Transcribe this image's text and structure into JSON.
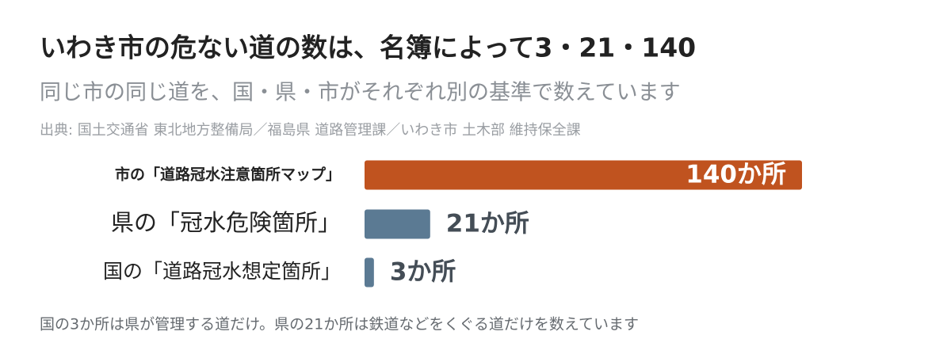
{
  "chart_data": {
    "type": "bar",
    "orientation": "horizontal",
    "title": "いわき市の危ない道の数は、名簿によって3・21・140",
    "subtitle": "同じ市の同じ道を、国・県・市がそれぞれ別の基準で数えています",
    "source": "出典: 国土交通省 東北地方整備局／福島県 道路管理課／いわき市 土木部 維持保全課",
    "categories": [
      "市の「道路冠水注意箇所マップ」",
      "県の「冠水危険箇所」",
      "国の「道路冠水想定箇所」"
    ],
    "values": [
      140,
      21,
      3
    ],
    "value_labels": [
      "140か所",
      "21か所",
      "3か所"
    ],
    "colors": [
      "#c0531f",
      "#5b7a93",
      "#5b7a93"
    ],
    "note": "国の3か所は県が管理する道だけ。県の21か所は鉄道などをくぐる道だけを数えています"
  }
}
